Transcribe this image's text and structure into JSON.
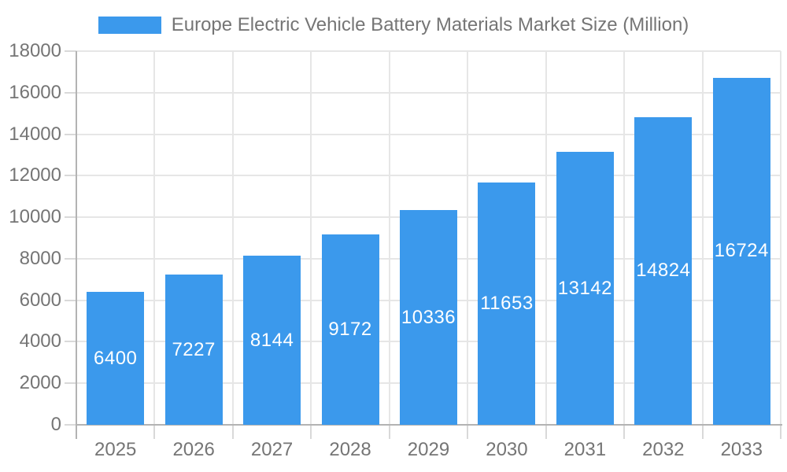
{
  "legend": {
    "label": "Europe Electric Vehicle Battery Materials Market Size (Million)"
  },
  "colors": {
    "bar": "#3B99EC",
    "bar_label": "#ffffff",
    "axis_line": "#b3b3b3",
    "gridline": "#e6e6e6",
    "tick": "#d9d9d9",
    "label_text": "#757575",
    "background": "#ffffff"
  },
  "chart_data": {
    "type": "bar",
    "title": "Europe Electric Vehicle Battery Materials Market Size (Million)",
    "categories": [
      "2025",
      "2026",
      "2027",
      "2028",
      "2029",
      "2030",
      "2031",
      "2032",
      "2033"
    ],
    "values": [
      6400,
      7227,
      8144,
      9172,
      10336,
      11653,
      13142,
      14824,
      16724
    ],
    "series": [
      {
        "name": "Europe Electric Vehicle Battery Materials Market Size (Million)",
        "values": [
          6400,
          7227,
          8144,
          9172,
          10336,
          11653,
          13142,
          14824,
          16724
        ]
      }
    ],
    "xlabel": "",
    "ylabel": "",
    "ylim": [
      0,
      18000
    ],
    "ytick_step": 2000,
    "yticks": [
      0,
      2000,
      4000,
      6000,
      8000,
      10000,
      12000,
      14000,
      16000,
      18000
    ],
    "grid": true,
    "legend_position": "top-center",
    "value_labels": "inside-center-white"
  }
}
